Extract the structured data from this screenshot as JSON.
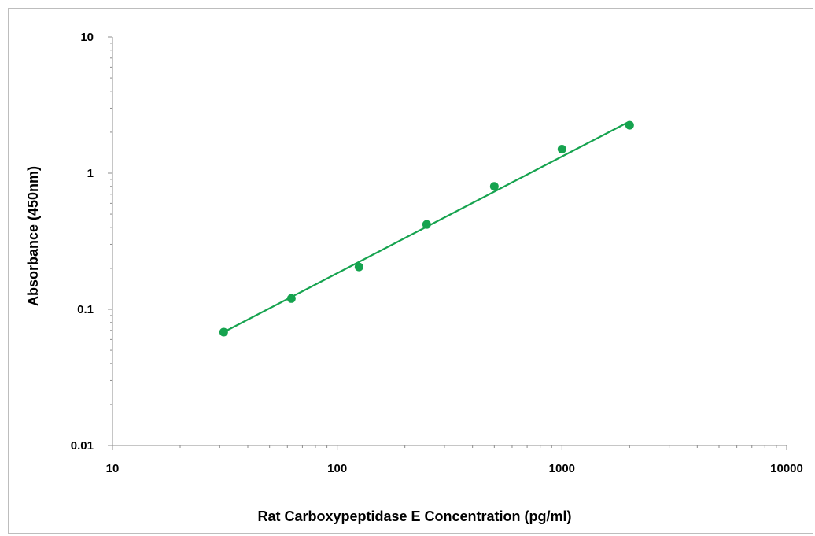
{
  "chart_data": {
    "type": "scatter",
    "title": "",
    "xlabel": "Rat Carboxypeptidase E Concentration (pg/ml)",
    "ylabel": "Absorbance (450nm)",
    "x_scale": "log",
    "y_scale": "log",
    "xlim": [
      10,
      10000
    ],
    "ylim": [
      0.01,
      10
    ],
    "x_ticks": [
      "10",
      "100",
      "1000",
      "10000"
    ],
    "y_ticks": [
      "10",
      "1",
      "0.1",
      "0.01"
    ],
    "grid": false,
    "legend": "none",
    "series": [
      {
        "color": "#16a34f",
        "x": [
          31.25,
          62.5,
          125,
          250,
          500,
          1000,
          2000
        ],
        "y": [
          0.068,
          0.12,
          0.205,
          0.42,
          0.8,
          1.5,
          2.25
        ]
      }
    ],
    "fit_line": {
      "color": "#16a34f",
      "x": [
        31.25,
        2000
      ],
      "y": [
        0.068,
        2.4
      ]
    }
  }
}
